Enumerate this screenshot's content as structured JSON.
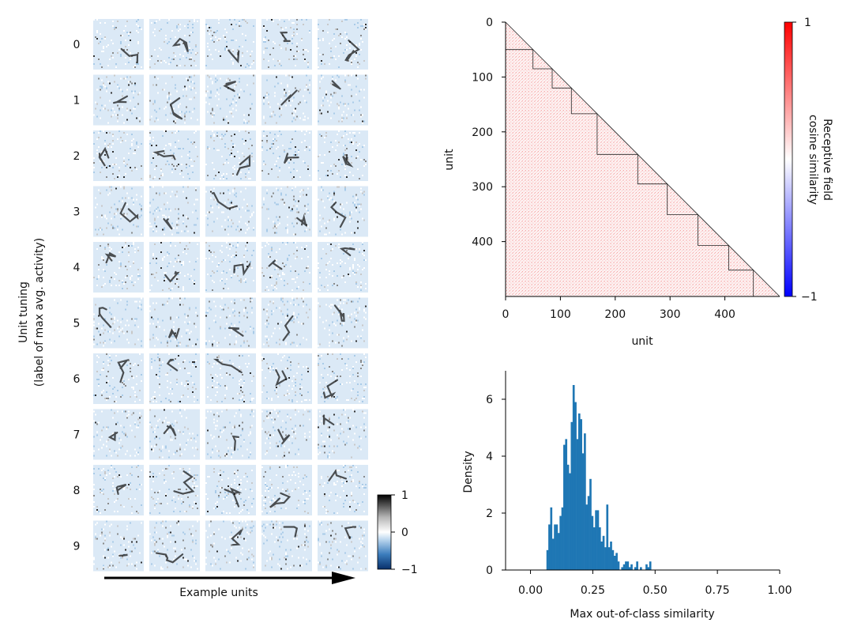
{
  "chart_data": [
    {
      "type": "image-grid",
      "ylabel_line1": "Unit tuning",
      "ylabel_line2": "(label of max avg. activity)",
      "row_labels": [
        "0",
        "1",
        "2",
        "3",
        "4",
        "5",
        "6",
        "7",
        "8",
        "9"
      ],
      "columns_per_row": 5,
      "xlabel": "Example units",
      "colorbar": {
        "ticks": [
          "1",
          "0",
          "−1"
        ],
        "range": [
          -1,
          1
        ],
        "colormap": "blue-white-black"
      }
    },
    {
      "type": "heatmap",
      "xlabel": "unit",
      "ylabel": "unit",
      "x_ticks": [
        "0",
        "100",
        "200",
        "300",
        "400"
      ],
      "y_ticks": [
        "0",
        "100",
        "200",
        "300",
        "400"
      ],
      "range": [
        0,
        500
      ],
      "class_boundaries": [
        0,
        50,
        85,
        120,
        167,
        241,
        295,
        351,
        407,
        452,
        500
      ],
      "colorbar": {
        "label_line1": "Receptive field",
        "label_line2": "cosine similarity",
        "ticks": [
          "1",
          "−1"
        ],
        "range": [
          -1,
          1
        ],
        "colormap": "bwr"
      }
    },
    {
      "type": "histogram",
      "xlabel": "Max out-of-class similarity",
      "ylabel": "Density",
      "x_ticks": [
        "0.00",
        "0.25",
        "0.50",
        "0.75",
        "1.00"
      ],
      "y_ticks": [
        "0",
        "2",
        "4",
        "6"
      ],
      "xlim": [
        -0.1,
        1.0
      ],
      "ylim": [
        0,
        7
      ],
      "bin_edges_start": 0.064,
      "bin_width": 0.0075,
      "values": [
        0.7,
        1.6,
        2.2,
        1.1,
        1.6,
        1.6,
        1.3,
        1.9,
        2.2,
        4.4,
        4.6,
        3.7,
        3.4,
        5.2,
        6.5,
        5.9,
        4.6,
        5.5,
        5.3,
        4.1,
        4.8,
        2.3,
        2.6,
        3.2,
        1.9,
        1.5,
        2.1,
        2.1,
        1.5,
        1.0,
        1.2,
        0.8,
        2.3,
        0.8,
        1.0,
        0.7,
        0.5,
        0.6,
        0.3,
        0.0,
        0.1,
        0.2,
        0.3,
        0.3,
        0.1,
        0.2,
        0.0,
        0.1,
        0.3,
        0.0,
        0.1,
        0.0,
        0.0,
        0.2,
        0.1,
        0.3
      ]
    }
  ]
}
